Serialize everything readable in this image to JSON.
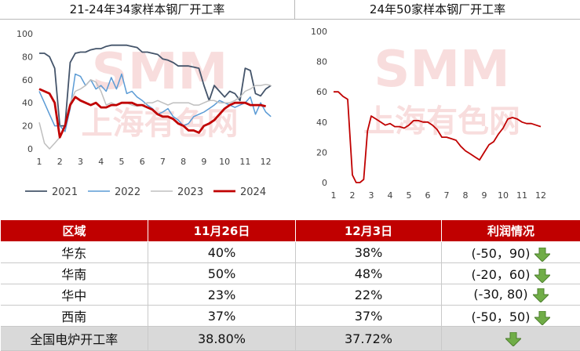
{
  "left_title": "21-24年34家样本钢厂开工率",
  "right_title": "24年50家样本钢厂开工率",
  "watermark": {
    "brand": "SMM",
    "text": "上海有色网"
  },
  "chart_data": [
    {
      "type": "line",
      "title": "21-24年34家样本钢厂开工率",
      "xlim": [
        1,
        12.7
      ],
      "ylim": [
        0,
        100
      ],
      "yticks": [
        0,
        20,
        40,
        60,
        80,
        100
      ],
      "xticks": [
        1,
        2,
        3,
        4,
        5,
        6,
        7,
        8,
        9,
        10,
        11,
        12
      ],
      "grid": false,
      "legend": "bottom",
      "series": [
        {
          "name": "2021",
          "color": "#44546a",
          "width": 1.8,
          "x": [
            1,
            1.25,
            1.5,
            1.75,
            2,
            2.25,
            2.5,
            2.75,
            3,
            3.25,
            3.5,
            3.75,
            4,
            4.25,
            4.5,
            4.75,
            5,
            5.25,
            5.5,
            5.75,
            6,
            6.25,
            6.5,
            6.75,
            7,
            7.25,
            7.5,
            7.75,
            8,
            8.25,
            8.5,
            8.75,
            9,
            9.25,
            9.5,
            9.75,
            10,
            10.25,
            10.5,
            10.75,
            11,
            11.25,
            11.5,
            11.75,
            12,
            12.25
          ],
          "y": [
            83,
            83,
            80,
            70,
            20,
            20,
            75,
            83,
            84,
            84,
            86,
            87,
            87,
            89,
            90,
            90,
            90,
            90,
            89,
            88,
            84,
            84,
            83,
            82,
            78,
            77,
            75,
            72,
            72,
            72,
            71,
            70,
            55,
            42,
            55,
            50,
            45,
            50,
            48,
            42,
            70,
            68,
            48,
            46,
            52,
            55
          ]
        },
        {
          "name": "2022",
          "color": "#5b9bd5",
          "width": 1.5,
          "x": [
            1,
            1.25,
            1.5,
            1.75,
            2,
            2.25,
            2.5,
            2.75,
            3,
            3.25,
            3.5,
            3.75,
            4,
            4.25,
            4.5,
            4.75,
            5,
            5.25,
            5.5,
            5.75,
            6,
            6.25,
            6.5,
            6.75,
            7,
            7.25,
            7.5,
            7.75,
            8,
            8.25,
            8.5,
            8.75,
            9,
            9.25,
            9.5,
            9.75,
            10,
            10.25,
            10.5,
            10.75,
            11,
            11.25,
            11.5,
            11.75,
            12,
            12.25
          ],
          "y": [
            50,
            40,
            30,
            20,
            20,
            15,
            35,
            65,
            63,
            55,
            60,
            52,
            55,
            50,
            62,
            52,
            65,
            48,
            50,
            45,
            42,
            38,
            35,
            30,
            32,
            35,
            28,
            25,
            20,
            22,
            28,
            30,
            32,
            35,
            38,
            42,
            40,
            38,
            36,
            38,
            40,
            45,
            30,
            40,
            32,
            28
          ]
        },
        {
          "name": "2023",
          "color": "#bfbfbf",
          "width": 1.5,
          "x": [
            1,
            1.25,
            1.5,
            1.75,
            2,
            2.25,
            2.5,
            2.75,
            3,
            3.25,
            3.5,
            3.75,
            4,
            4.25,
            4.5,
            4.75,
            5,
            5.25,
            5.5,
            5.75,
            6,
            6.25,
            6.5,
            6.75,
            7,
            7.25,
            7.5,
            7.75,
            8,
            8.25,
            8.5,
            8.75,
            9,
            9.25,
            9.5,
            9.75,
            10,
            10.25,
            10.5,
            10.75,
            11,
            11.25,
            11.5,
            11.75,
            12,
            12.25
          ],
          "y": [
            23,
            5,
            0,
            5,
            10,
            20,
            40,
            50,
            52,
            55,
            60,
            58,
            50,
            38,
            40,
            38,
            40,
            40,
            38,
            37,
            38,
            40,
            40,
            42,
            40,
            38,
            40,
            40,
            40,
            40,
            38,
            38,
            40,
            42,
            42,
            40,
            40,
            40,
            42,
            45,
            50,
            52,
            55,
            55,
            56,
            55
          ]
        },
        {
          "name": "2024",
          "color": "#c00000",
          "width": 2.8,
          "x": [
            1,
            1.25,
            1.5,
            1.75,
            2,
            2.25,
            2.5,
            2.75,
            3,
            3.25,
            3.5,
            3.75,
            4,
            4.25,
            4.5,
            4.75,
            5,
            5.25,
            5.5,
            5.75,
            6,
            6.25,
            6.5,
            6.75,
            7,
            7.25,
            7.5,
            7.75,
            8,
            8.25,
            8.5,
            8.75,
            9,
            9.25,
            9.5,
            9.75,
            10,
            10.25,
            10.5,
            10.75,
            11,
            11.25,
            11.5,
            11.75,
            12
          ],
          "y": [
            52,
            50,
            48,
            40,
            10,
            20,
            38,
            45,
            42,
            40,
            38,
            40,
            36,
            36,
            38,
            38,
            40,
            40,
            40,
            38,
            38,
            36,
            34,
            30,
            28,
            28,
            26,
            22,
            20,
            16,
            16,
            14,
            20,
            22,
            25,
            30,
            35,
            38,
            40,
            40,
            40,
            38,
            38,
            38,
            37
          ]
        }
      ]
    },
    {
      "type": "line",
      "title": "24年50家样本钢厂开工率",
      "xlim": [
        1,
        12.5
      ],
      "ylim": [
        0,
        100
      ],
      "yticks": [
        0,
        20,
        40,
        60,
        80,
        100
      ],
      "xticks": [
        1,
        2,
        3,
        4,
        5,
        6,
        7,
        8,
        9,
        10,
        11,
        12
      ],
      "grid": false,
      "series": [
        {
          "color": "#c00000",
          "width": 1.8,
          "x": [
            1,
            1.25,
            1.5,
            1.75,
            1.9,
            2,
            2.2,
            2.4,
            2.6,
            2.8,
            3,
            3.25,
            3.5,
            3.75,
            4,
            4.25,
            4.5,
            4.75,
            5,
            5.25,
            5.5,
            5.75,
            6,
            6.25,
            6.5,
            6.75,
            7,
            7.25,
            7.5,
            7.75,
            8,
            8.25,
            8.5,
            8.75,
            9,
            9.25,
            9.5,
            9.75,
            10,
            10.25,
            10.5,
            10.75,
            11,
            11.25,
            11.5,
            11.75,
            12
          ],
          "y": [
            60,
            60,
            57,
            55,
            25,
            5,
            0,
            0,
            2,
            34,
            44,
            42,
            40,
            38,
            39,
            37,
            37,
            36,
            38,
            41,
            41,
            40,
            40,
            38,
            35,
            30,
            30,
            29,
            28,
            24,
            21,
            19,
            17,
            15,
            20,
            25,
            27,
            32,
            36,
            42,
            43,
            42,
            40,
            39,
            39,
            38,
            37
          ]
        }
      ]
    }
  ],
  "table": {
    "headers": [
      "区域",
      "11月26日",
      "12月3日",
      "利润情况"
    ],
    "rows": [
      {
        "region": "华东",
        "nov26": "40%",
        "dec3": "38%",
        "profit": "(-50，90)"
      },
      {
        "region": "华南",
        "nov26": "50%",
        "dec3": "48%",
        "profit": "(-20，60)"
      },
      {
        "region": "华中",
        "nov26": "23%",
        "dec3": "22%",
        "profit": "(-30, 80)"
      },
      {
        "region": "西南",
        "nov26": "37%",
        "dec3": "37%",
        "profit": "(-50，50)"
      }
    ],
    "total": {
      "label": "全国电炉开工率",
      "nov26": "38.80%",
      "dec3": "37.72%"
    },
    "arrow_icon": "down-arrow-icon",
    "arrow_color": "#70ad47"
  }
}
